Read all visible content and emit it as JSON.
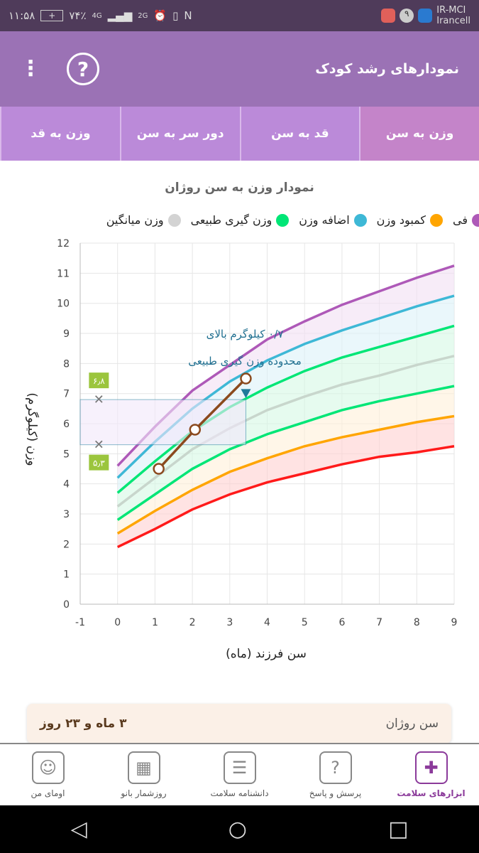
{
  "status": {
    "time": "۱۱:۵۸",
    "battery": "۷۴٪",
    "network": "4G",
    "network2": "2G",
    "carrier1": "IR-MCI",
    "carrier2": "Irancell",
    "notif_count": "۹"
  },
  "appbar": {
    "title": "نمودارهای رشد کودک",
    "help_label": "?",
    "menu_label": "⋮"
  },
  "tabs": [
    {
      "label": "وزن به سن",
      "active": true
    },
    {
      "label": "قد به سن"
    },
    {
      "label": "دور سر به سن"
    },
    {
      "label": "وزن به قد"
    }
  ],
  "chart_title": "نمودار وزن به سن روژان",
  "legend": [
    {
      "label": "فی",
      "color": "#ae59b8"
    },
    {
      "label": "کمبود وزن",
      "color": "#ffa500"
    },
    {
      "label": "اضافه وزن",
      "color": "#3eb8d6"
    },
    {
      "label": "وزن گیری طبیعی",
      "color": "#00e676"
    },
    {
      "label": "وزن میانگین",
      "color": "#d3d3d3"
    }
  ],
  "chart_data": {
    "type": "line",
    "xlabel": "سن فرزند (ماه)",
    "ylabel": "وزن (کیلوگرم)",
    "xlim": [
      -1,
      9
    ],
    "ylim": [
      0,
      12
    ],
    "grid": true,
    "x": [
      0,
      1,
      2,
      3,
      4,
      5,
      6,
      7,
      8,
      9
    ],
    "xticks": [
      "-1",
      "0",
      "1",
      "2",
      "3",
      "4",
      "5",
      "6",
      "7",
      "8",
      "9"
    ],
    "yticks": [
      "0",
      "1",
      "2",
      "3",
      "4",
      "5",
      "6",
      "7",
      "8",
      "9",
      "10",
      "11",
      "12"
    ],
    "curves": [
      {
        "color": "#ff1a1a",
        "values": [
          1.9,
          2.5,
          3.15,
          3.65,
          4.05,
          4.35,
          4.65,
          4.9,
          5.05,
          5.25
        ]
      },
      {
        "color": "#ffa500",
        "values": [
          2.35,
          3.1,
          3.8,
          4.4,
          4.85,
          5.25,
          5.55,
          5.8,
          6.05,
          6.25
        ]
      },
      {
        "color": "#00e676",
        "values": [
          2.8,
          3.65,
          4.5,
          5.15,
          5.65,
          6.05,
          6.45,
          6.75,
          7.0,
          7.25
        ]
      },
      {
        "color": "#c8d6cc",
        "values": [
          3.25,
          4.2,
          5.15,
          5.85,
          6.45,
          6.9,
          7.3,
          7.6,
          7.95,
          8.25
        ]
      },
      {
        "color": "#00e676",
        "values": [
          3.7,
          4.75,
          5.75,
          6.55,
          7.2,
          7.75,
          8.2,
          8.55,
          8.9,
          9.25
        ]
      },
      {
        "color": "#3eb8d6",
        "values": [
          4.2,
          5.4,
          6.5,
          7.4,
          8.1,
          8.65,
          9.1,
          9.5,
          9.9,
          10.25
        ]
      },
      {
        "color": "#ae59b8",
        "values": [
          4.6,
          5.9,
          7.1,
          7.95,
          8.8,
          9.4,
          9.95,
          10.4,
          10.85,
          11.25
        ]
      }
    ],
    "bands": [
      "#ffd0d0",
      "#fff0d8",
      "#d6f8e4",
      "#d6f8e4",
      "#dcf2f8",
      "#f2e0f4"
    ],
    "child": {
      "color": "#8b4a1e",
      "points": [
        [
          1.1,
          4.5
        ],
        [
          2.07,
          5.8
        ],
        [
          3.43,
          7.5
        ]
      ]
    },
    "normal_range": {
      "low": 5.3,
      "high": 6.8,
      "low_label": "۵٫۳",
      "high_label": "۶٫۸"
    },
    "annotation": [
      "۰/۷ کیلوگرم بالای",
      "محدوده وزن گیری طبیعی"
    ]
  },
  "card": {
    "label": "سن روژان",
    "value": "۳ ماه و ۲۳ روز"
  },
  "bottom_nav": [
    {
      "label": "ابزارهای سلامت",
      "icon": "✚",
      "active": true
    },
    {
      "label": "پرسش و پاسخ",
      "icon": "?"
    },
    {
      "label": "دانشنامه سلامت",
      "icon": "☰"
    },
    {
      "label": "روزشمار بانو",
      "icon": "▦"
    },
    {
      "label": "اومای من",
      "icon": "☺"
    }
  ],
  "sysnav": {
    "back": "◁",
    "home": "○",
    "recent": "□"
  }
}
